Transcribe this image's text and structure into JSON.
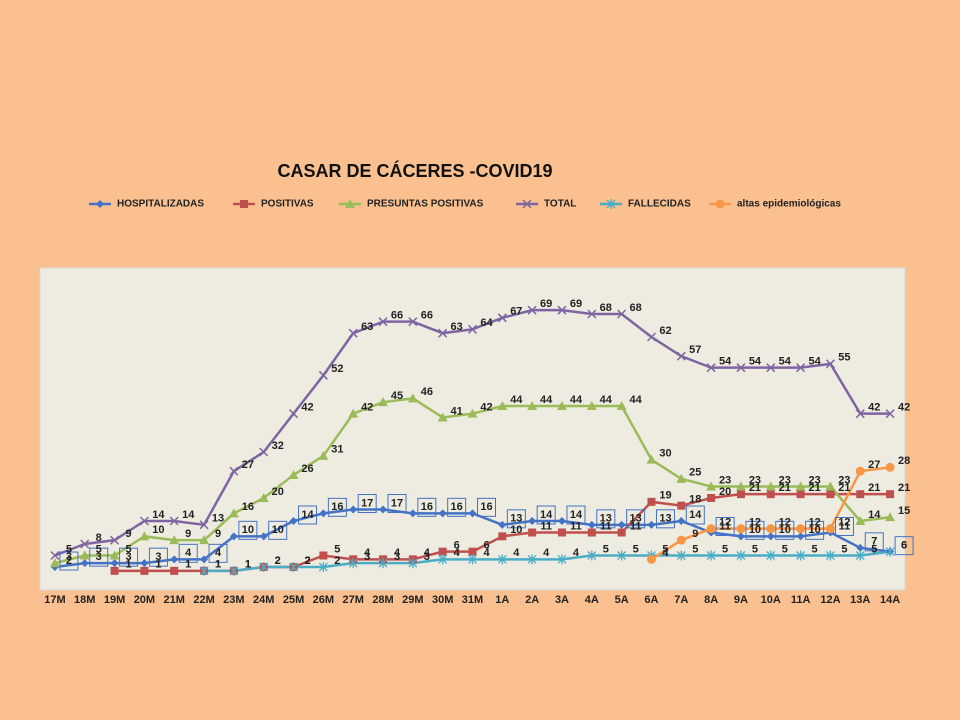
{
  "chart_data": {
    "type": "line",
    "title": "CASAR DE CÁCERES -COVID19",
    "categories": [
      "17M",
      "18M",
      "19M",
      "20M",
      "21M",
      "22M",
      "23M",
      "24M",
      "25M",
      "26M",
      "27M",
      "28M",
      "29M",
      "30M",
      "31M",
      "1A",
      "2A",
      "3A",
      "4A",
      "5A",
      "6A",
      "7A",
      "8A",
      "9A",
      "10A",
      "11A",
      "12A",
      "13A",
      "14A"
    ],
    "series": [
      {
        "name": "HOSPITALIZADAS",
        "color": "#4472c4",
        "values": [
          2,
          3,
          3,
          3,
          4,
          4,
          10,
          10,
          14,
          16,
          17,
          17,
          16,
          16,
          16,
          13,
          14,
          14,
          13,
          13,
          13,
          14,
          11,
          10,
          10,
          10,
          11,
          7,
          6
        ]
      },
      {
        "name": "POSITIVAS",
        "color": "#c0504d",
        "values": [
          null,
          null,
          1,
          1,
          1,
          1,
          1,
          2,
          2,
          5,
          4,
          4,
          4,
          6,
          6,
          10,
          11,
          11,
          11,
          11,
          19,
          18,
          20,
          21,
          21,
          21,
          21,
          21,
          21
        ]
      },
      {
        "name": "PRESUNTAS POSITIVAS",
        "color": "#9bbb59",
        "values": [
          3,
          5,
          5,
          10,
          9,
          9,
          16,
          20,
          26,
          31,
          42,
          45,
          46,
          41,
          42,
          44,
          44,
          44,
          44,
          44,
          30,
          25,
          23,
          23,
          23,
          23,
          23,
          14,
          15
        ]
      },
      {
        "name": "TOTAL",
        "color": "#8064a2",
        "values": [
          5,
          8,
          9,
          14,
          14,
          13,
          27,
          32,
          42,
          52,
          63,
          66,
          66,
          63,
          64,
          67,
          69,
          69,
          68,
          68,
          62,
          57,
          54,
          54,
          54,
          54,
          55,
          42,
          42
        ]
      },
      {
        "name": "FALLECIDAS",
        "color": "#4bacc6",
        "values": [
          null,
          null,
          null,
          null,
          null,
          1,
          1,
          2,
          2,
          2,
          3,
          3,
          3,
          4,
          4,
          4,
          4,
          4,
          5,
          5,
          5,
          5,
          5,
          5,
          5,
          5,
          5,
          5,
          6
        ]
      },
      {
        "name": "altas epidemiológicas",
        "color": "#f79646",
        "values": [
          null,
          null,
          null,
          null,
          null,
          null,
          null,
          null,
          null,
          null,
          null,
          null,
          null,
          null,
          null,
          null,
          null,
          null,
          null,
          null,
          4,
          9,
          12,
          12,
          12,
          12,
          12,
          27,
          28
        ]
      }
    ],
    "ylim": [
      -4,
      80
    ]
  }
}
